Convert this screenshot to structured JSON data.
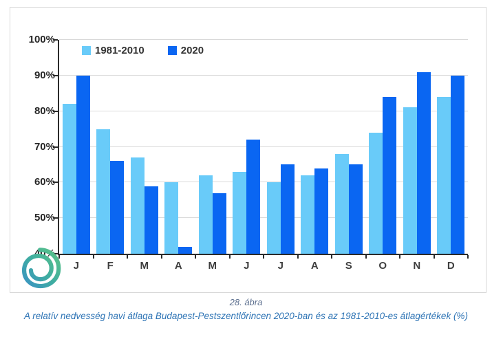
{
  "legend": {
    "items": [
      {
        "label": "1981-2010",
        "color": "#69CBF9"
      },
      {
        "label": "2020",
        "color": "#0A66F2"
      }
    ]
  },
  "chart_data": {
    "type": "bar",
    "categories": [
      "J",
      "F",
      "M",
      "A",
      "M",
      "J",
      "J",
      "A",
      "S",
      "O",
      "N",
      "D"
    ],
    "series": [
      {
        "name": "1981-2010",
        "color": "#69CBF9",
        "values": [
          82,
          75,
          67,
          60,
          62,
          63,
          60,
          62,
          68,
          74,
          81,
          84
        ]
      },
      {
        "name": "2020",
        "color": "#0A66F2",
        "values": [
          90,
          66,
          59,
          42,
          57,
          72,
          65,
          64,
          65,
          84,
          91,
          90
        ]
      }
    ],
    "ylim": [
      40,
      100
    ],
    "ytick_step": 10,
    "ytick_labels": [
      "100%",
      "90%",
      "80%",
      "70%",
      "60%",
      "50%",
      "40%"
    ],
    "grid": "horizontal",
    "legend_position": "inside-top-left",
    "title": "",
    "xlabel": "",
    "ylabel": ""
  },
  "caption": {
    "line1": "28. ábra",
    "line2": "A relatív nedvesség havi átlaga Budapest-Pestszentlőrincen 2020-ban és az 1981-2010-es átlagértékek (%)"
  },
  "logo": {
    "name": "met-swirl-logo",
    "colors": {
      "outer": "#5ec487",
      "mid": "#3fae9f",
      "inner": "#3a93c4"
    }
  }
}
